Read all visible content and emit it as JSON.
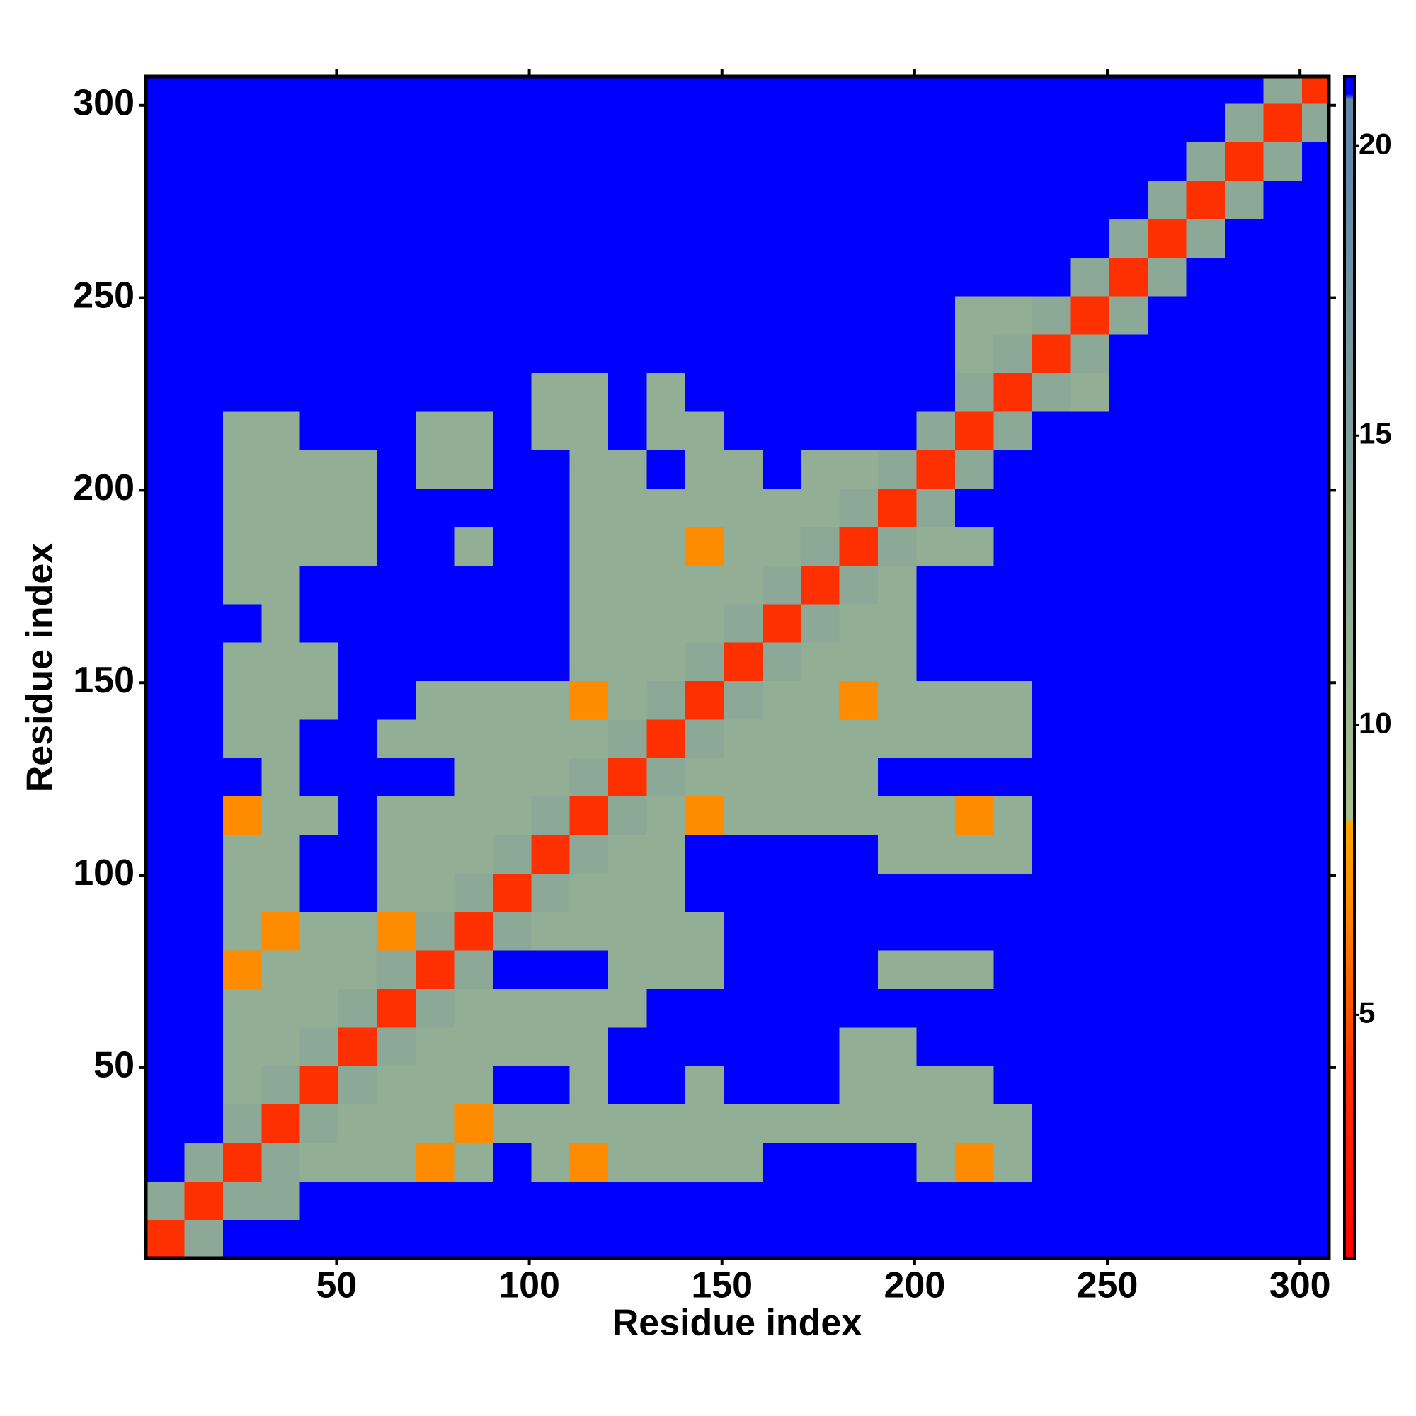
{
  "chart_data": {
    "type": "heatmap",
    "x_label": "Residue index",
    "y_label": "Residue index",
    "xlim": [
      0.5,
      307.5
    ],
    "ylim": [
      0.5,
      307.5
    ],
    "xticks": [
      50,
      100,
      150,
      200,
      250,
      300
    ],
    "yticks": [
      50,
      100,
      150,
      200,
      250,
      300
    ],
    "xbins": [
      0.5,
      10.5,
      20.5,
      30.5,
      40.5,
      50.5,
      60.5,
      70.5,
      80.5,
      90.5,
      100.5,
      110.5,
      120.5,
      130.5,
      140.5,
      150.5,
      160.5,
      170.5,
      180.5,
      190.5,
      200.5,
      210.5,
      220.5,
      230.5,
      240.5,
      250.5,
      260.5,
      270.5,
      280.5,
      290.5,
      300.5,
      307.5
    ],
    "ybins": [
      0.5,
      10.5,
      20.5,
      30.5,
      40.5,
      50.5,
      60.5,
      70.5,
      80.5,
      90.5,
      100.5,
      110.5,
      120.5,
      130.5,
      140.5,
      150.5,
      160.5,
      170.5,
      180.5,
      190.5,
      200.5,
      210.5,
      220.5,
      230.5,
      240.5,
      250.5,
      260.5,
      270.5,
      280.5,
      290.5,
      300.5,
      307.5
    ],
    "colorbar_lim": [
      0.8,
      21.2
    ],
    "colorbar_ticks": [
      5,
      10,
      15,
      20
    ],
    "colorscale": [
      [
        0.8,
        "#ff0000"
      ],
      [
        4,
        "#ff3000"
      ],
      [
        7,
        "#ff8c00"
      ],
      [
        8.3,
        "#ffa500"
      ],
      [
        8.4,
        "#a8c08c"
      ],
      [
        19.5,
        "#6488a8"
      ],
      [
        20.8,
        "#6488a8"
      ],
      [
        20.9,
        "#0000ff"
      ],
      [
        21.2,
        "#0000ff"
      ]
    ],
    "z": [
      [
        4,
        13,
        21,
        21,
        21,
        21,
        21,
        21,
        21,
        21,
        21,
        21,
        21,
        21,
        21,
        21,
        21,
        21,
        21,
        21,
        21,
        21,
        21,
        21,
        21,
        21,
        21,
        21,
        21,
        21,
        21
      ],
      [
        13,
        4,
        13,
        13,
        21,
        21,
        21,
        21,
        21,
        21,
        21,
        21,
        21,
        21,
        21,
        21,
        21,
        21,
        21,
        21,
        21,
        21,
        21,
        21,
        21,
        21,
        21,
        21,
        21,
        21,
        21
      ],
      [
        21,
        13,
        4,
        13,
        12,
        12,
        12,
        7,
        12,
        21,
        12,
        7,
        12,
        12,
        12,
        12,
        21,
        21,
        21,
        21,
        12,
        7,
        12,
        21,
        21,
        21,
        21,
        21,
        21,
        21,
        21
      ],
      [
        21,
        21,
        13,
        4,
        13,
        12,
        12,
        12,
        7,
        12,
        12,
        12,
        12,
        12,
        12,
        12,
        12,
        12,
        12,
        12,
        12,
        12,
        12,
        21,
        21,
        21,
        21,
        21,
        21,
        21,
        21
      ],
      [
        21,
        21,
        12,
        13,
        4,
        13,
        12,
        12,
        12,
        21,
        21,
        12,
        21,
        21,
        12,
        21,
        21,
        21,
        12,
        12,
        12,
        12,
        21,
        21,
        21,
        21,
        21,
        21,
        21,
        21,
        21
      ],
      [
        21,
        21,
        12,
        12,
        13,
        4,
        13,
        12,
        12,
        12,
        12,
        12,
        21,
        21,
        21,
        21,
        21,
        21,
        12,
        12,
        21,
        21,
        21,
        21,
        21,
        21,
        21,
        21,
        21,
        21,
        21
      ],
      [
        21,
        21,
        12,
        12,
        12,
        13,
        4,
        13,
        12,
        12,
        12,
        12,
        12,
        21,
        21,
        21,
        21,
        21,
        21,
        21,
        21,
        21,
        21,
        21,
        21,
        21,
        21,
        21,
        21,
        21,
        21
      ],
      [
        21,
        21,
        7,
        12,
        12,
        12,
        13,
        4,
        13,
        21,
        21,
        21,
        12,
        12,
        12,
        21,
        21,
        21,
        21,
        12,
        12,
        12,
        21,
        21,
        21,
        21,
        21,
        21,
        21,
        21,
        21
      ],
      [
        21,
        21,
        12,
        7,
        12,
        12,
        7,
        13,
        4,
        13,
        12,
        12,
        12,
        12,
        12,
        21,
        21,
        21,
        21,
        21,
        21,
        21,
        21,
        21,
        21,
        21,
        21,
        21,
        21,
        21,
        21
      ],
      [
        21,
        21,
        12,
        12,
        21,
        21,
        12,
        12,
        13,
        4,
        13,
        12,
        12,
        12,
        21,
        21,
        21,
        21,
        21,
        21,
        21,
        21,
        21,
        21,
        21,
        21,
        21,
        21,
        21,
        21,
        21
      ],
      [
        21,
        21,
        12,
        12,
        21,
        21,
        12,
        12,
        12,
        13,
        4,
        13,
        12,
        12,
        21,
        21,
        21,
        21,
        21,
        12,
        12,
        12,
        12,
        21,
        21,
        21,
        21,
        21,
        21,
        21,
        21
      ],
      [
        21,
        21,
        7,
        12,
        12,
        21,
        12,
        12,
        12,
        12,
        13,
        4,
        13,
        12,
        7,
        12,
        12,
        12,
        12,
        12,
        12,
        7,
        12,
        21,
        21,
        21,
        21,
        21,
        21,
        21,
        21
      ],
      [
        21,
        21,
        21,
        12,
        21,
        21,
        21,
        21,
        12,
        12,
        12,
        13,
        4,
        13,
        12,
        12,
        12,
        12,
        12,
        21,
        21,
        21,
        21,
        21,
        21,
        21,
        21,
        21,
        21,
        21,
        21
      ],
      [
        21,
        21,
        12,
        12,
        21,
        21,
        12,
        12,
        12,
        12,
        12,
        12,
        13,
        4,
        13,
        12,
        12,
        12,
        12,
        12,
        12,
        12,
        12,
        21,
        21,
        21,
        21,
        21,
        21,
        21,
        21
      ],
      [
        21,
        21,
        12,
        12,
        12,
        21,
        21,
        12,
        12,
        12,
        12,
        7,
        12,
        13,
        4,
        13,
        12,
        12,
        7,
        12,
        12,
        12,
        12,
        21,
        21,
        21,
        21,
        21,
        21,
        21,
        21
      ],
      [
        21,
        21,
        12,
        12,
        12,
        21,
        21,
        21,
        21,
        21,
        21,
        12,
        12,
        12,
        13,
        4,
        13,
        12,
        12,
        12,
        21,
        21,
        21,
        21,
        21,
        21,
        21,
        21,
        21,
        21,
        21
      ],
      [
        21,
        21,
        21,
        12,
        21,
        21,
        21,
        21,
        21,
        21,
        21,
        12,
        12,
        12,
        12,
        13,
        4,
        13,
        12,
        12,
        21,
        21,
        21,
        21,
        21,
        21,
        21,
        21,
        21,
        21,
        21
      ],
      [
        21,
        21,
        12,
        12,
        21,
        21,
        21,
        21,
        21,
        21,
        21,
        12,
        12,
        12,
        12,
        12,
        13,
        4,
        13,
        12,
        21,
        21,
        21,
        21,
        21,
        21,
        21,
        21,
        21,
        21,
        21
      ],
      [
        21,
        21,
        12,
        12,
        12,
        12,
        21,
        21,
        12,
        21,
        21,
        12,
        12,
        12,
        7,
        12,
        12,
        13,
        4,
        13,
        12,
        12,
        21,
        21,
        21,
        21,
        21,
        21,
        21,
        21,
        21
      ],
      [
        21,
        21,
        12,
        12,
        12,
        12,
        21,
        21,
        21,
        21,
        21,
        12,
        12,
        12,
        12,
        12,
        12,
        12,
        13,
        4,
        13,
        21,
        21,
        21,
        21,
        21,
        21,
        21,
        21,
        21,
        21
      ],
      [
        21,
        21,
        12,
        12,
        12,
        12,
        21,
        12,
        12,
        21,
        21,
        12,
        12,
        21,
        12,
        12,
        21,
        12,
        12,
        13,
        4,
        13,
        21,
        21,
        21,
        21,
        21,
        21,
        21,
        21,
        21
      ],
      [
        21,
        21,
        12,
        12,
        21,
        21,
        21,
        12,
        12,
        21,
        12,
        12,
        21,
        12,
        12,
        21,
        21,
        21,
        21,
        21,
        13,
        4,
        13,
        21,
        21,
        21,
        21,
        21,
        21,
        21,
        21
      ],
      [
        21,
        21,
        21,
        21,
        21,
        21,
        21,
        21,
        21,
        21,
        12,
        12,
        21,
        12,
        21,
        21,
        21,
        21,
        21,
        21,
        21,
        13,
        4,
        13,
        12,
        21,
        21,
        21,
        21,
        21,
        21
      ],
      [
        21,
        21,
        21,
        21,
        21,
        21,
        21,
        21,
        21,
        21,
        21,
        21,
        21,
        21,
        21,
        21,
        21,
        21,
        21,
        21,
        21,
        12,
        13,
        4,
        13,
        21,
        21,
        21,
        21,
        21,
        21
      ],
      [
        21,
        21,
        21,
        21,
        21,
        21,
        21,
        21,
        21,
        21,
        21,
        21,
        21,
        21,
        21,
        21,
        21,
        21,
        21,
        21,
        21,
        12,
        12,
        13,
        4,
        13,
        21,
        21,
        21,
        21,
        21
      ],
      [
        21,
        21,
        21,
        21,
        21,
        21,
        21,
        21,
        21,
        21,
        21,
        21,
        21,
        21,
        21,
        21,
        21,
        21,
        21,
        21,
        21,
        21,
        21,
        21,
        13,
        4,
        13,
        21,
        21,
        21,
        21
      ],
      [
        21,
        21,
        21,
        21,
        21,
        21,
        21,
        21,
        21,
        21,
        21,
        21,
        21,
        21,
        21,
        21,
        21,
        21,
        21,
        21,
        21,
        21,
        21,
        21,
        21,
        13,
        4,
        13,
        21,
        21,
        21
      ],
      [
        21,
        21,
        21,
        21,
        21,
        21,
        21,
        21,
        21,
        21,
        21,
        21,
        21,
        21,
        21,
        21,
        21,
        21,
        21,
        21,
        21,
        21,
        21,
        21,
        21,
        21,
        13,
        4,
        13,
        21,
        21
      ],
      [
        21,
        21,
        21,
        21,
        21,
        21,
        21,
        21,
        21,
        21,
        21,
        21,
        21,
        21,
        21,
        21,
        21,
        21,
        21,
        21,
        21,
        21,
        21,
        21,
        21,
        21,
        21,
        13,
        4,
        13,
        21
      ],
      [
        21,
        21,
        21,
        21,
        21,
        21,
        21,
        21,
        21,
        21,
        21,
        21,
        21,
        21,
        21,
        21,
        21,
        21,
        21,
        21,
        21,
        21,
        21,
        21,
        21,
        21,
        21,
        21,
        13,
        4,
        13
      ],
      [
        21,
        21,
        21,
        21,
        21,
        21,
        21,
        21,
        21,
        21,
        21,
        21,
        21,
        21,
        21,
        21,
        21,
        21,
        21,
        21,
        21,
        21,
        21,
        21,
        21,
        21,
        21,
        21,
        21,
        13,
        4
      ]
    ]
  }
}
